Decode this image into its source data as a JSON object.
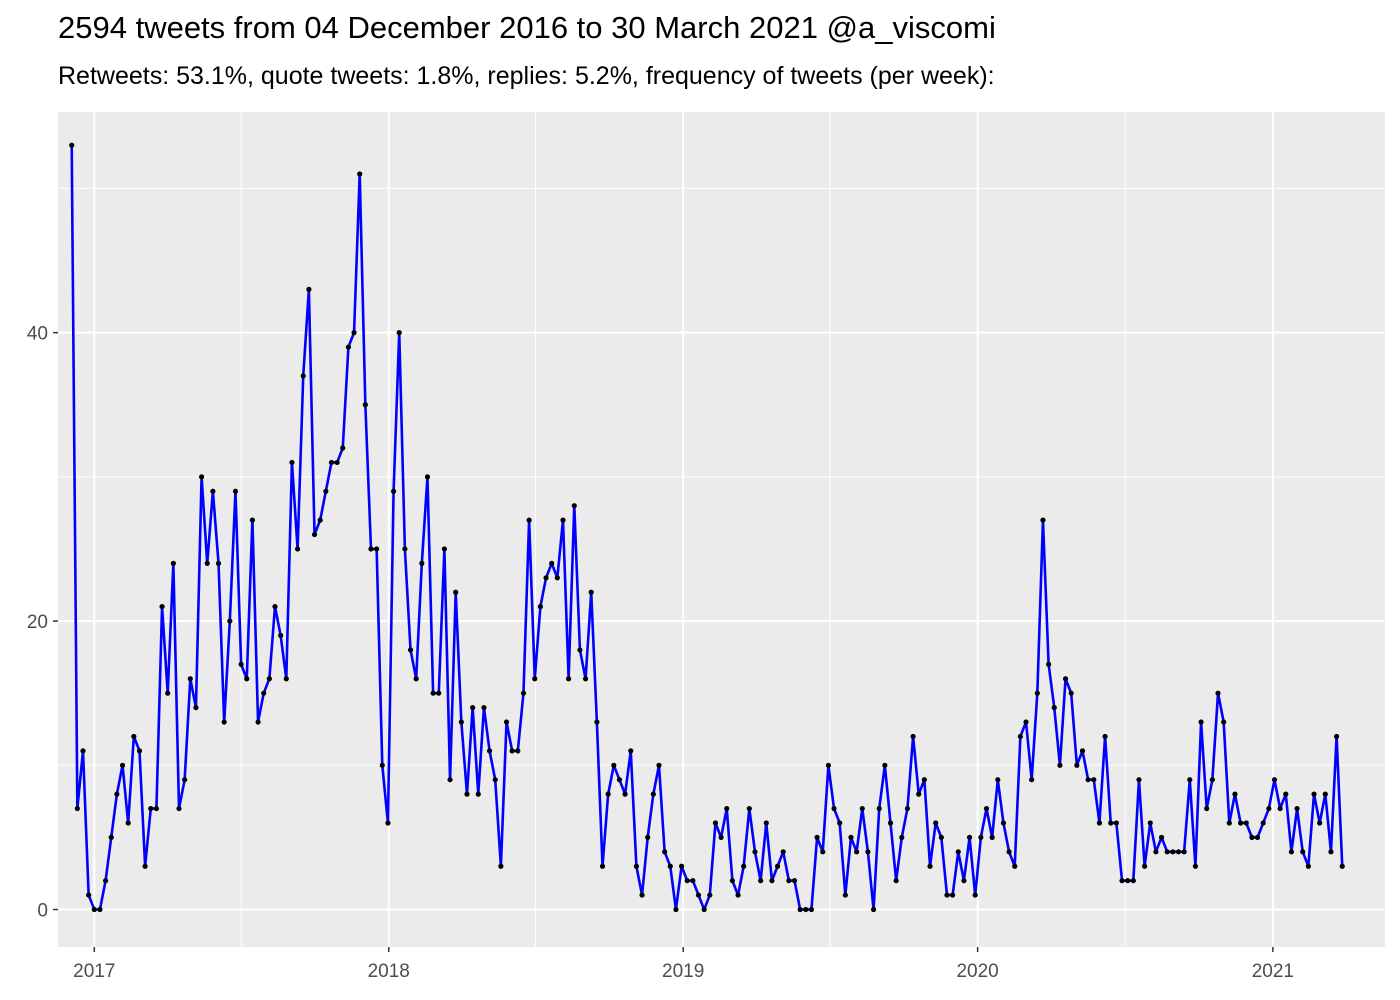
{
  "title": "2594 tweets from 04 December 2016 to 30 March 2021 @a_viscomi",
  "subtitle": "Retweets: 53.1%, quote tweets: 1.8%, replies: 5.2%, frequency of tweets (per week):",
  "colors": {
    "panel": "#ebebeb",
    "grid": "#ffffff",
    "line": "#0000ff",
    "point": "#000000",
    "tick_text": "#4d4d4d"
  },
  "chart_data": {
    "type": "line",
    "title": "2594 tweets from 04 December 2016 to 30 March 2021 @a_viscomi",
    "subtitle": "Retweets: 53.1%, quote tweets: 1.8%, replies: 5.2%, frequency of tweets (per week):",
    "xlabel": "",
    "ylabel": "",
    "x_type": "date",
    "x_start_week": "2016-12-04",
    "x_interval": "1 week",
    "xlim": [
      "2016-11-17",
      "2021-05-20"
    ],
    "ylim": [
      -2.6,
      55.3
    ],
    "x_ticks": [
      "2017",
      "2018",
      "2019",
      "2020",
      "2021"
    ],
    "y_ticks": [
      0,
      20,
      40
    ],
    "grid": true,
    "legend": "none",
    "series": [
      {
        "values": [
          53,
          7,
          11,
          1,
          0,
          0,
          2,
          5,
          8,
          10,
          6,
          12,
          11,
          3,
          7,
          7,
          21,
          15,
          24,
          7,
          9,
          16,
          14,
          30,
          24,
          29,
          24,
          13,
          20,
          29,
          17,
          16,
          27,
          13,
          15,
          16,
          21,
          19,
          16,
          31,
          25,
          37,
          43,
          26,
          27,
          29,
          31,
          31,
          32,
          39,
          40,
          51,
          35,
          25,
          25,
          10,
          6,
          29,
          40,
          25,
          18,
          16,
          24,
          30,
          15,
          15,
          25,
          9,
          22,
          13,
          8,
          14,
          8,
          14,
          11,
          9,
          3,
          13,
          11,
          11,
          15,
          27,
          16,
          21,
          23,
          24,
          23,
          27,
          16,
          28,
          18,
          16,
          22,
          13,
          3,
          8,
          10,
          9,
          8,
          11,
          3,
          1,
          5,
          8,
          10,
          4,
          3,
          0,
          3,
          2,
          2,
          1,
          0,
          1,
          6,
          5,
          7,
          2,
          1,
          3,
          7,
          4,
          2,
          6,
          2,
          3,
          4,
          2,
          2,
          0,
          0,
          0,
          5,
          4,
          10,
          7,
          6,
          1,
          5,
          4,
          7,
          4,
          0,
          7,
          10,
          6,
          2,
          5,
          7,
          12,
          8,
          9,
          3,
          6,
          5,
          1,
          1,
          4,
          2,
          5,
          1,
          5,
          7,
          5,
          9,
          6,
          4,
          3,
          12,
          13,
          9,
          15,
          27,
          17,
          14,
          10,
          16,
          15,
          10,
          11,
          9,
          9,
          6,
          12,
          6,
          6,
          2,
          2,
          2,
          9,
          3,
          6,
          4,
          5,
          4,
          4,
          4,
          4,
          9,
          3,
          13,
          7,
          9,
          15,
          13,
          6,
          8,
          6,
          6,
          5,
          5,
          6,
          7,
          9,
          7,
          8,
          4,
          7,
          4,
          3,
          8,
          6,
          8,
          4,
          12,
          3
        ]
      }
    ]
  }
}
